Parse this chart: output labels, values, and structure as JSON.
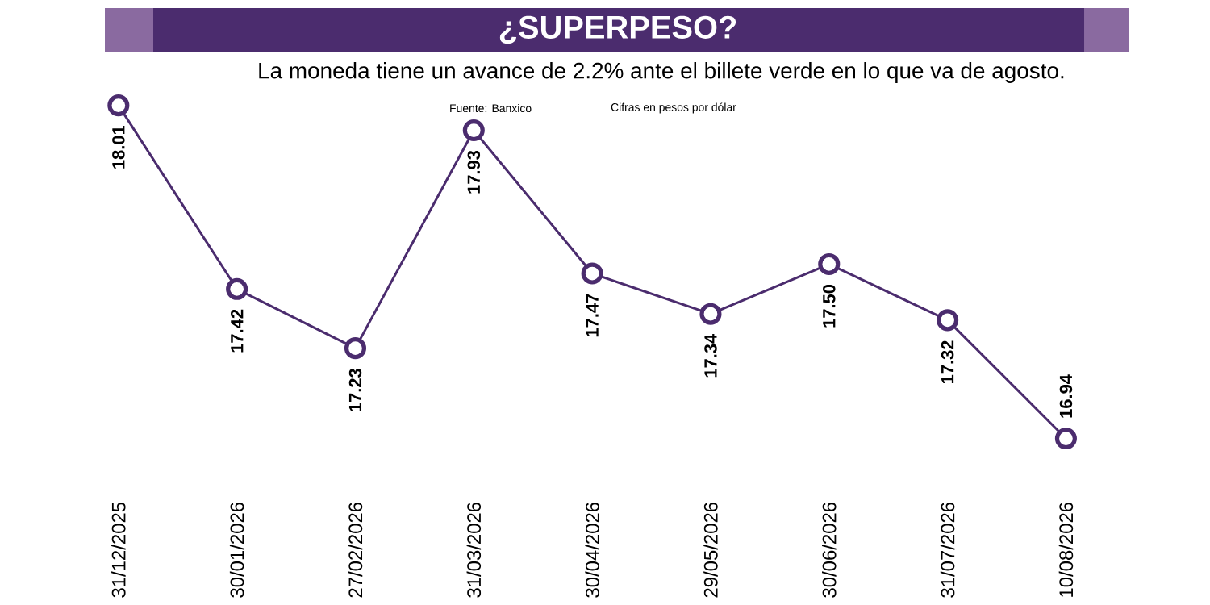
{
  "chart_data": {
    "type": "line",
    "title": "¿SUPERPESO?",
    "subtitle": "La moneda tiene un avance de 2.2% ante el billete verde en lo que va de agosto.",
    "annotations": [
      "Fuente: Banxico",
      "Cifras en pesos por dólar"
    ],
    "categories": [
      "31/12/2025",
      "30/01/2026",
      "27/02/2026",
      "31/03/2026",
      "30/04/2026",
      "29/05/2026",
      "30/06/2026",
      "31/07/2026",
      "10/08/2026"
    ],
    "values": [
      18.01,
      17.42,
      17.23,
      17.93,
      17.47,
      17.34,
      17.5,
      17.32,
      16.94
    ],
    "value_labels": [
      "18.01",
      "17.42",
      "17.23",
      "17.93",
      "17.47",
      "17.34",
      "17.50",
      "17.32",
      "16.94"
    ],
    "color": "#4b2c6e",
    "marker": "circle",
    "line_style": "solid"
  }
}
